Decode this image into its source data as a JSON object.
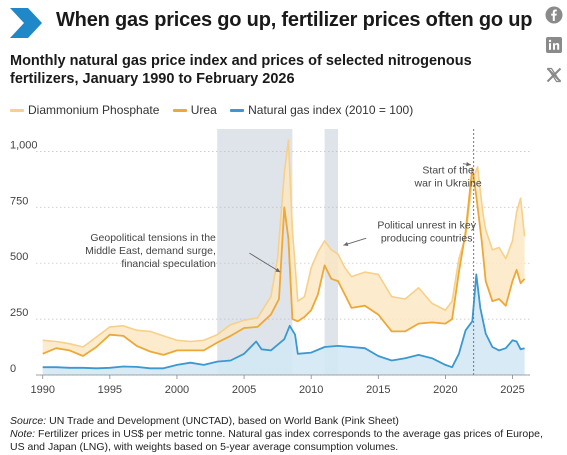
{
  "header": {
    "title": "When gas prices go up, fertilizer prices often go up",
    "subtitle": "Monthly natural gas price index and prices of selected nitrogenous fertilizers, January 1990 to February 2026"
  },
  "social": [
    {
      "name": "facebook-icon"
    },
    {
      "name": "linkedin-icon"
    },
    {
      "name": "x-icon"
    }
  ],
  "footer": {
    "source_label": "Source:",
    "source": " UN Trade and Development (UNCTAD), based on World Bank (Pink Sheet)",
    "note_label": "Note:",
    "note": " Fertilizer prices in US$ per metric tonne. Natural gas index corresponds to the average gas prices of Europe, US and Japan (LNG), with weights based on 5-year average consumption volumes."
  },
  "colors": {
    "accent": "#1e88c8",
    "dap": "#f7d08a",
    "dap_band": "#fbe8c4",
    "urea": "#eda836",
    "gas": "#3b98d0",
    "gas_band": "#d3e8f5",
    "shade": "#dfe3ea"
  },
  "chart_data": {
    "type": "line",
    "x_unit": "year",
    "xlim": [
      1989.5,
      2026.3
    ],
    "ylim": [
      0,
      1100
    ],
    "x_ticks": [
      1990,
      1995,
      2000,
      2005,
      2010,
      2015,
      2020,
      2025
    ],
    "y_ticks": [
      0,
      250,
      500,
      750,
      1000
    ],
    "y_tick_labels": [
      "0",
      "250",
      "500",
      "750",
      "1,000"
    ],
    "shaded_periods": [
      [
        2003,
        2008.6
      ],
      [
        2011.0,
        2012.0
      ]
    ],
    "event_line": 2022.1,
    "annotations": [
      {
        "lines": [
          "Geopolitical tensions in the",
          "Middle East, demand surge,",
          "financial speculation"
        ],
        "x": 2002.9,
        "y": 600,
        "arrow_to": [
          2007.7,
          460
        ]
      },
      {
        "lines": [
          "Political unrest in key",
          "producing countries"
        ],
        "x": 2018.6,
        "y": 655,
        "arrow_to": [
          2012.4,
          580
        ]
      },
      {
        "lines": [
          "Start of the",
          "war in Ukraine"
        ],
        "x": 2020.2,
        "y": 900,
        "arrow_to": [
          2021.9,
          940
        ]
      }
    ],
    "series": [
      {
        "name": "Diammonium Phosphate",
        "x": [
          1990,
          1991,
          1992,
          1993,
          1994,
          1995,
          1996,
          1997,
          1998,
          1999,
          2000,
          2001,
          2002,
          2003,
          2004,
          2005,
          2006,
          2007,
          2007.5,
          2008,
          2008.3,
          2008.6,
          2009,
          2009.5,
          2010,
          2010.5,
          2011,
          2011.5,
          2012,
          2012.5,
          2013,
          2014,
          2015,
          2016,
          2017,
          2018,
          2019,
          2020,
          2020.5,
          2021,
          2021.5,
          2022,
          2022.4,
          2022.8,
          2023,
          2023.5,
          2024,
          2024.5,
          2025,
          2025.3,
          2025.6,
          2025.9
        ],
        "values": [
          155,
          150,
          140,
          125,
          170,
          215,
          220,
          200,
          195,
          175,
          155,
          150,
          155,
          180,
          225,
          245,
          255,
          350,
          520,
          900,
          1050,
          650,
          330,
          350,
          480,
          550,
          600,
          560,
          540,
          480,
          440,
          460,
          450,
          350,
          340,
          390,
          320,
          290,
          330,
          520,
          620,
          870,
          930,
          720,
          650,
          560,
          570,
          520,
          600,
          730,
          790,
          620
        ]
      },
      {
        "name": "Urea",
        "x": [
          1990,
          1991,
          1992,
          1993,
          1994,
          1995,
          1996,
          1997,
          1998,
          1999,
          2000,
          2001,
          2002,
          2003,
          2004,
          2005,
          2006,
          2007,
          2007.6,
          2008,
          2008.3,
          2008.6,
          2009,
          2009.5,
          2010,
          2010.5,
          2011,
          2011.5,
          2012,
          2012.5,
          2013,
          2014,
          2015,
          2016,
          2017,
          2018,
          2019,
          2020,
          2020.5,
          2021,
          2021.5,
          2022,
          2022.3,
          2022.7,
          2023,
          2023.5,
          2024,
          2024.5,
          2025,
          2025.3,
          2025.6,
          2025.9
        ],
        "values": [
          95,
          120,
          110,
          85,
          125,
          180,
          175,
          130,
          105,
          90,
          110,
          110,
          110,
          145,
          175,
          210,
          215,
          270,
          340,
          750,
          610,
          250,
          240,
          260,
          290,
          360,
          490,
          430,
          420,
          360,
          300,
          310,
          270,
          195,
          195,
          230,
          235,
          230,
          250,
          460,
          640,
          925,
          800,
          600,
          420,
          330,
          340,
          310,
          420,
          470,
          410,
          430
        ]
      },
      {
        "name": "Natural gas index (2010 = 100)",
        "x": [
          1990,
          1991,
          1992,
          1993,
          1994,
          1995,
          1996,
          1997,
          1998,
          1999,
          2000,
          2001,
          2002,
          2003,
          2004,
          2005,
          2005.9,
          2006.3,
          2007,
          2008,
          2008.4,
          2008.8,
          2009,
          2010,
          2011,
          2012,
          2013,
          2014,
          2015,
          2016,
          2017,
          2018,
          2019,
          2020,
          2020.5,
          2021,
          2021.5,
          2022,
          2022.3,
          2022.6,
          2023,
          2023.5,
          2024,
          2024.5,
          2025,
          2025.3,
          2025.6,
          2025.9
        ],
        "values": [
          35,
          35,
          32,
          32,
          30,
          32,
          38,
          36,
          30,
          30,
          45,
          55,
          45,
          60,
          65,
          95,
          150,
          115,
          110,
          160,
          220,
          180,
          95,
          100,
          125,
          130,
          125,
          120,
          85,
          65,
          75,
          90,
          75,
          45,
          35,
          95,
          200,
          240,
          450,
          300,
          185,
          125,
          110,
          120,
          155,
          150,
          115,
          120
        ]
      }
    ]
  }
}
